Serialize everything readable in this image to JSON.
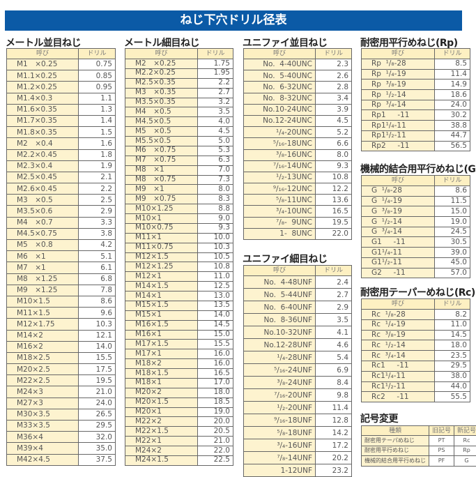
{
  "title": "ねじ下穴ドリル径表",
  "sections": [
    {
      "id": "metric-coarse",
      "title": "メートル並目ねじ",
      "headers": [
        "呼び",
        "ドリル"
      ],
      "rows": [
        [
          "M1　×0.25",
          "0.75"
        ],
        [
          "M1.1×0.25",
          "0.85"
        ],
        [
          "M1.2×0.25",
          "0.95"
        ],
        [
          "M1.4×0.3",
          "1.1"
        ],
        [
          "M1.6×0.35",
          "1.3"
        ],
        [
          "M1.7×0.35",
          "1.4"
        ],
        [
          "M1.8×0.35",
          "1.5"
        ],
        [
          "M2　×0.4",
          "1.6"
        ],
        [
          "M2.2×0.45",
          "1.8"
        ],
        [
          "M2.3×0.4",
          "1.9"
        ],
        [
          "M2.5×0.45",
          "2.1"
        ],
        [
          "M2.6×0.45",
          "2.2"
        ],
        [
          "M3　×0.5",
          "2.5"
        ],
        [
          "M3.5×0.6",
          "2.9"
        ],
        [
          "M4　×0.7",
          "3.3"
        ],
        [
          "M4.5×0.75",
          "3.8"
        ],
        [
          "M5　×0.8",
          "4.2"
        ],
        [
          "M6　×1",
          "5.1"
        ],
        [
          "M7　×1",
          "6.1"
        ],
        [
          "M8　×1.25",
          "6.8"
        ],
        [
          "M9　×1.25",
          "7.8"
        ],
        [
          "M10×1.5",
          "8.6"
        ],
        [
          "M11×1.5",
          "9.6"
        ],
        [
          "M12×1.75",
          "10.3"
        ],
        [
          "M14×2",
          "12.1"
        ],
        [
          "M16×2",
          "14.0"
        ],
        [
          "M18×2.5",
          "15.5"
        ],
        [
          "M20×2.5",
          "17.5"
        ],
        [
          "M22×2.5",
          "19.5"
        ],
        [
          "M24×3",
          "21.0"
        ],
        [
          "M27×3",
          "24.0"
        ],
        [
          "M30×3.5",
          "26.5"
        ],
        [
          "M33×3.5",
          "29.5"
        ],
        [
          "M36×4",
          "32.0"
        ],
        [
          "M39×4",
          "35.0"
        ],
        [
          "M42×4.5",
          "37.5"
        ]
      ]
    },
    {
      "id": "metric-fine",
      "title": "メートル細目ねじ",
      "headers": [
        "呼び",
        "ドリル"
      ],
      "rows": [
        [
          "M2　×0.25",
          "1.75"
        ],
        [
          "M2.2×0.25",
          "1.95"
        ],
        [
          "M2.5×0.35",
          "2.2"
        ],
        [
          "M3　×0.35",
          "2.7"
        ],
        [
          "M3.5×0.35",
          "3.2"
        ],
        [
          "M4　×0.5",
          "3.5"
        ],
        [
          "M4.5×0.5",
          "4.0"
        ],
        [
          "M5　×0.5",
          "4.5"
        ],
        [
          "M5.5×0.5",
          "5.0"
        ],
        [
          "M6　×0.75",
          "5.3"
        ],
        [
          "M7　×0.75",
          "6.3"
        ],
        [
          "M8　×1",
          "7.0"
        ],
        [
          "M8　×0.75",
          "7.3"
        ],
        [
          "M9　×1",
          "8.0"
        ],
        [
          "M9　×0.75",
          "8.3"
        ],
        [
          "M10×1.25",
          "8.8"
        ],
        [
          "M10×1",
          "9.0"
        ],
        [
          "M10×0.75",
          "9.3"
        ],
        [
          "M11×1",
          "10.0"
        ],
        [
          "M11×0.75",
          "10.3"
        ],
        [
          "M12×1.5",
          "10.5"
        ],
        [
          "M12×1.25",
          "10.8"
        ],
        [
          "M12×1",
          "11.0"
        ],
        [
          "M14×1.5",
          "12.5"
        ],
        [
          "M14×1",
          "13.0"
        ],
        [
          "M15×1.5",
          "13.5"
        ],
        [
          "M15×1",
          "14.0"
        ],
        [
          "M16×1.5",
          "14.5"
        ],
        [
          "M16×1",
          "15.0"
        ],
        [
          "M17×1.5",
          "15.5"
        ],
        [
          "M17×1",
          "16.0"
        ],
        [
          "M18×2",
          "16.0"
        ],
        [
          "M18×1.5",
          "16.5"
        ],
        [
          "M18×1",
          "17.0"
        ],
        [
          "M20×2",
          "18.0"
        ],
        [
          "M20×1.5",
          "18.5"
        ],
        [
          "M20×1",
          "19.0"
        ],
        [
          "M22×2",
          "20.0"
        ],
        [
          "M22×1.5",
          "20.5"
        ],
        [
          "M22×1",
          "21.0"
        ],
        [
          "M24×2",
          "22.0"
        ],
        [
          "M24×1.5",
          "22.5"
        ]
      ]
    },
    {
      "id": "unc",
      "title": "ユニファイ並目ねじ",
      "headers": [
        "呼び",
        "ドリル"
      ],
      "rows": [
        [
          "No.  4-40UNC",
          "2.3"
        ],
        [
          "No.  5-40UNC",
          "2.6"
        ],
        [
          "No.  6-32UNC",
          "2.8"
        ],
        [
          "No.  8-32UNC",
          "3.4"
        ],
        [
          "No.10-24UNC",
          "3.9"
        ],
        [
          "No.12-24UNC",
          "4.5"
        ],
        [
          "¹/₄-20UNC",
          "5.2"
        ],
        [
          "⁵/₁₆-18UNC",
          "6.6"
        ],
        [
          "³/₈-16UNC",
          "8.0"
        ],
        [
          "⁷/₁₆-14UNC",
          "9.3"
        ],
        [
          "¹/₂-13UNC",
          "10.8"
        ],
        [
          "⁹/₁₆-12UNC",
          "12.2"
        ],
        [
          "⁵/₈-11UNC",
          "13.6"
        ],
        [
          "³/₄-10UNC",
          "16.5"
        ],
        [
          "⁷/₈-  9UNC",
          "19.5"
        ],
        [
          "1-  8UNC",
          "22.0"
        ]
      ]
    },
    {
      "id": "unf",
      "title": "ユニファイ細目ねじ",
      "headers": [
        "呼び",
        "ドリル"
      ],
      "rows": [
        [
          "No.  4-48UNF",
          "2.4"
        ],
        [
          "No.  5-44UNF",
          "2.7"
        ],
        [
          "No.  6-40UNF",
          "2.9"
        ],
        [
          "No.  8-36UNF",
          "3.5"
        ],
        [
          "No.10-32UNF",
          "4.1"
        ],
        [
          "No.12-28UNF",
          "4.6"
        ],
        [
          "¹/₄-28UNF",
          "5.4"
        ],
        [
          "⁵/₁₆-24UNF",
          "6.9"
        ],
        [
          "³/₈-24UNF",
          "8.4"
        ],
        [
          "⁷/₁₆-20UNF",
          "9.8"
        ],
        [
          "¹/₂-20UNF",
          "11.4"
        ],
        [
          "⁹/₁₆-18UNF",
          "12.8"
        ],
        [
          "⁵/₈-18UNF",
          "14.2"
        ],
        [
          "³/₄-16UNF",
          "17.2"
        ],
        [
          "⁷/₈-14UNF",
          "20.2"
        ],
        [
          "1-12UNF",
          "23.2"
        ]
      ]
    },
    {
      "id": "rp",
      "title": "耐密用平行めねじ(Rp)",
      "headers": [
        "呼び",
        "ドリル"
      ],
      "rows": [
        [
          "Rp  ¹/₈-28",
          "8.5"
        ],
        [
          "Rp  ¹/₄-19",
          "11.4"
        ],
        [
          "Rp  ³/₈-19",
          "14.9"
        ],
        [
          "Rp  ¹/₂-14",
          "18.6"
        ],
        [
          "Rp  ³/₄-14",
          "24.0"
        ],
        [
          "Rp1     -11",
          "30.2"
        ],
        [
          "Rp1¹/₄-11",
          "38.8"
        ],
        [
          "Rp1¹/₂-11",
          "44.7"
        ],
        [
          "Rp2     -11",
          "56.5"
        ]
      ]
    },
    {
      "id": "g",
      "title": "機械的結合用平行めねじ(G)",
      "headers": [
        "呼び",
        "ドリル"
      ],
      "rows": [
        [
          "G  ¹/₈-28",
          "8.6"
        ],
        [
          "G  ¹/₄-19",
          "11.5"
        ],
        [
          "G  ³/₈-19",
          "15.0"
        ],
        [
          "G  ¹/₂-14",
          "19.0"
        ],
        [
          "G  ³/₄-14",
          "24.5"
        ],
        [
          "G1     -11",
          "30.5"
        ],
        [
          "G1¹/₄-11",
          "39.0"
        ],
        [
          "G1¹/₂-11",
          "45.0"
        ],
        [
          "G2     -11",
          "57.0"
        ]
      ]
    },
    {
      "id": "rc",
      "title": "耐密用テーパーめねじ(Rc)",
      "headers": [
        "呼び",
        "ドリル"
      ],
      "rows": [
        [
          "Rc  ¹/₈-28",
          "8.2"
        ],
        [
          "Rc  ¹/₄-19",
          "11.0"
        ],
        [
          "Rc  ³/₈-19",
          "14.5"
        ],
        [
          "Rc  ¹/₂-14",
          "18.0"
        ],
        [
          "Rc  ³/₄-14",
          "23.5"
        ],
        [
          "Rc1     -11",
          "29.5"
        ],
        [
          "Rc1¹/₄-11",
          "38.0"
        ],
        [
          "Rc1¹/₂-11",
          "44.0"
        ],
        [
          "Rc2     -11",
          "55.5"
        ]
      ]
    },
    {
      "id": "symbols",
      "title": "記号変更",
      "headers": [
        "種類",
        "旧記号",
        "新記号"
      ],
      "rows": [
        [
          "耐密用テーパめねじ",
          "PT",
          "Rc"
        ],
        [
          "耐密用平行めねじ",
          "PS",
          "Rp"
        ],
        [
          "機械的結合用平行めねじ",
          "PF",
          "G"
        ]
      ]
    }
  ]
}
